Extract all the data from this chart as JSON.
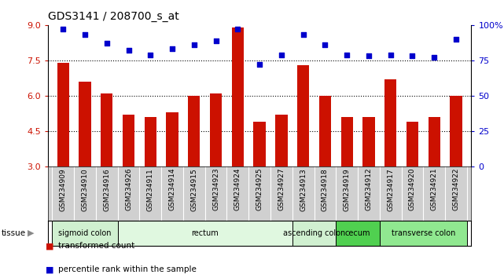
{
  "title": "GDS3141 / 208700_s_at",
  "samples": [
    "GSM234909",
    "GSM234910",
    "GSM234916",
    "GSM234926",
    "GSM234911",
    "GSM234914",
    "GSM234915",
    "GSM234923",
    "GSM234924",
    "GSM234925",
    "GSM234927",
    "GSM234913",
    "GSM234918",
    "GSM234919",
    "GSM234912",
    "GSM234917",
    "GSM234920",
    "GSM234921",
    "GSM234922"
  ],
  "bar_values": [
    7.4,
    6.6,
    6.1,
    5.2,
    5.1,
    5.3,
    6.0,
    6.1,
    8.9,
    4.9,
    5.2,
    7.3,
    6.0,
    5.1,
    5.1,
    6.7,
    4.9,
    5.1,
    6.0
  ],
  "dot_values": [
    97,
    93,
    87,
    82,
    79,
    83,
    86,
    89,
    97,
    72,
    79,
    93,
    86,
    79,
    78,
    79,
    78,
    77,
    90
  ],
  "tissues": [
    {
      "label": "sigmoid colon",
      "start": 0,
      "end": 3,
      "color": "#d0f0d0"
    },
    {
      "label": "rectum",
      "start": 3,
      "end": 11,
      "color": "#e0f8e0"
    },
    {
      "label": "ascending colon",
      "start": 11,
      "end": 13,
      "color": "#d0f0d0"
    },
    {
      "label": "cecum",
      "start": 13,
      "end": 15,
      "color": "#50d050"
    },
    {
      "label": "transverse colon",
      "start": 15,
      "end": 19,
      "color": "#90e890"
    }
  ],
  "ylim_left": [
    3,
    9
  ],
  "ylim_right": [
    0,
    100
  ],
  "yticks_left": [
    3,
    4.5,
    6,
    7.5,
    9
  ],
  "yticks_right": [
    0,
    25,
    50,
    75,
    100
  ],
  "hlines": [
    4.5,
    6.0,
    7.5
  ],
  "bar_color": "#cc1100",
  "dot_color": "#0000cc",
  "tick_label_color_left": "#cc1100",
  "tick_label_color_right": "#0000cc",
  "legend_bar_label": "transformed count",
  "legend_dot_label": "percentile rank within the sample",
  "tissue_label": "tissue",
  "background_color": "#ffffff",
  "plot_bg_color": "#ffffff",
  "tick_area_color": "#d0d0d0"
}
